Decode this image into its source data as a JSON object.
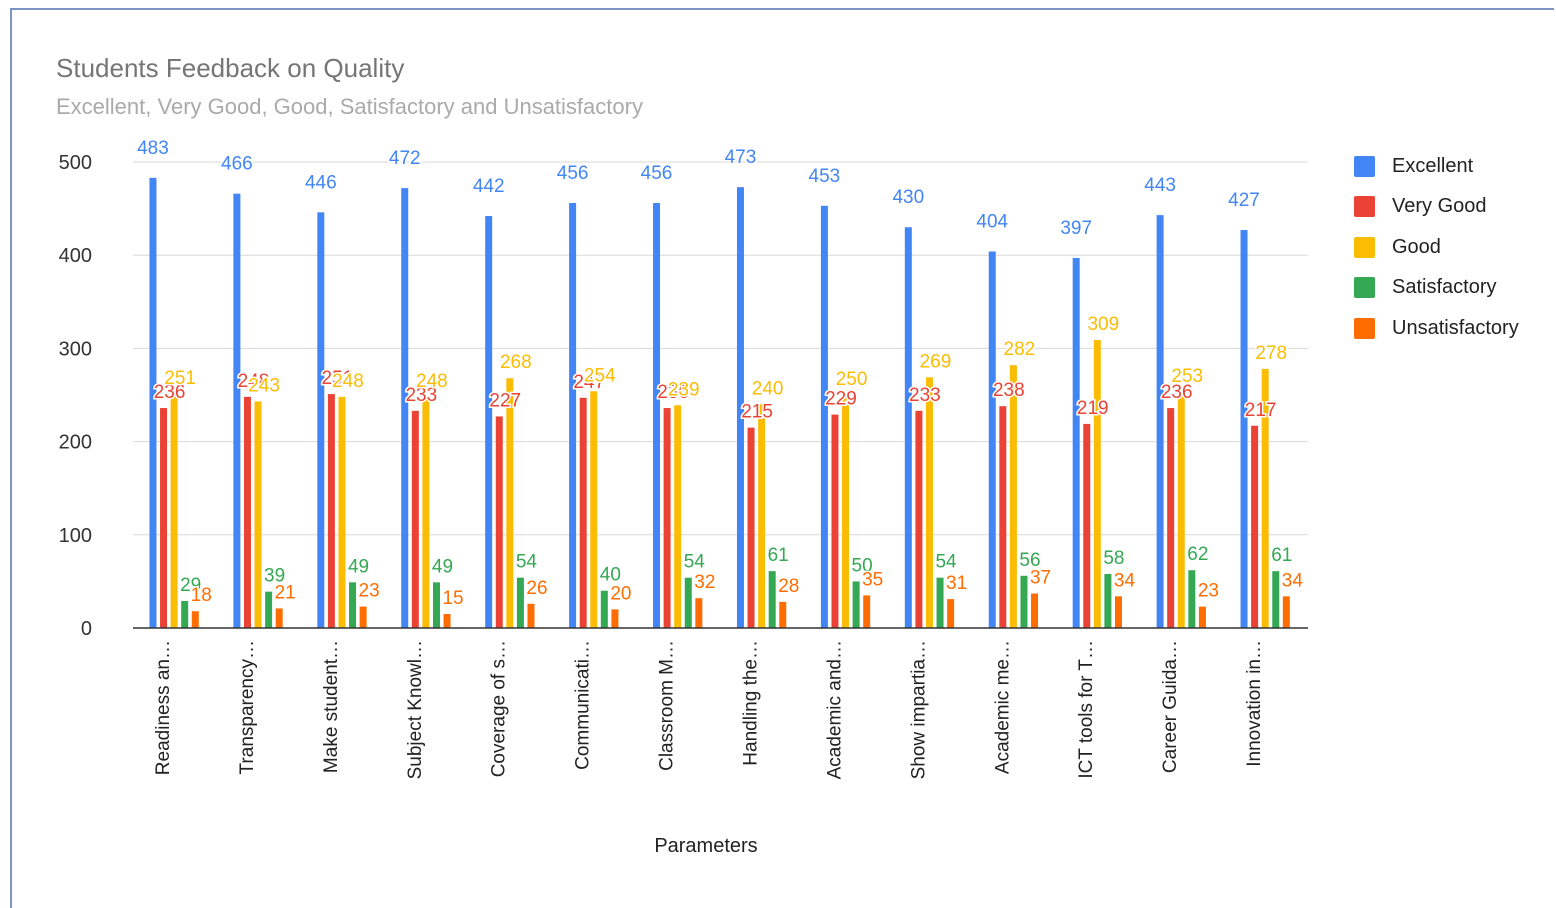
{
  "chart_data": {
    "type": "bar",
    "title": "Students Feedback on Quality",
    "subtitle": "Excellent, Very Good, Good, Satisfactory and Unsatisfactory",
    "xlabel": "Parameters",
    "ylabel": "",
    "ylim": [
      0,
      500
    ],
    "yticks": [
      0,
      100,
      200,
      300,
      400,
      500
    ],
    "grid": true,
    "legend_position": "right",
    "categories": [
      "Readiness an…",
      "Transparency…",
      "Make student…",
      "Subject Knowl…",
      "Coverage of s…",
      "Communicati…",
      "Classroom M…",
      "Handling the…",
      "Academic and…",
      "Show impartia…",
      "Academic me…",
      "ICT tools for T…",
      "Career Guida…",
      "Innovation in…"
    ],
    "series": [
      {
        "name": "Excellent",
        "color": "#4285f4",
        "values": [
          483,
          466,
          446,
          472,
          442,
          456,
          456,
          473,
          453,
          430,
          404,
          397,
          443,
          427
        ]
      },
      {
        "name": "Very Good",
        "color": "#ea4335",
        "values": [
          236,
          248,
          251,
          233,
          227,
          247,
          236,
          215,
          229,
          233,
          238,
          219,
          236,
          217
        ]
      },
      {
        "name": "Good",
        "color": "#fbbc04",
        "values": [
          251,
          243,
          248,
          248,
          268,
          254,
          239,
          240,
          250,
          269,
          282,
          309,
          253,
          278
        ]
      },
      {
        "name": "Satisfactory",
        "color": "#34a853",
        "values": [
          29,
          39,
          49,
          49,
          54,
          40,
          54,
          61,
          50,
          54,
          56,
          58,
          62,
          61
        ]
      },
      {
        "name": "Unsatisfactory",
        "color": "#ff6d01",
        "values": [
          18,
          21,
          23,
          15,
          26,
          20,
          32,
          28,
          35,
          31,
          37,
          34,
          23,
          34
        ]
      }
    ]
  }
}
